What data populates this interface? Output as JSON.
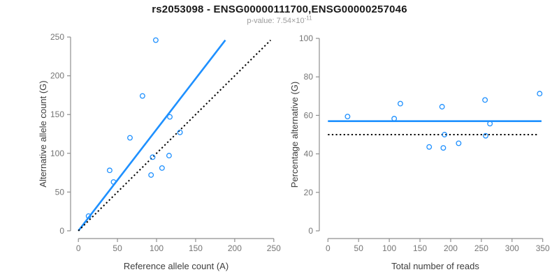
{
  "header": {
    "title": "rs2053098 - ENSG00000111700,ENSG00000257046",
    "pvalue_prefix": "p-value: 7.54×10",
    "pvalue_exponent": "-11"
  },
  "colors": {
    "accent_blue": "#1E90FF",
    "dotted_black": "#000000",
    "axis_line_gray": "#8f8f8f",
    "tick_label_gray": "#757575",
    "axis_title_dark": "#3d3d3d",
    "background": "#ffffff"
  },
  "chart_data": [
    {
      "type": "scatter",
      "panel": "left",
      "xlabel": "Reference allele count (A)",
      "ylabel": "Alternative allele count (G)",
      "xlim": [
        0,
        250
      ],
      "ylim": [
        0,
        250
      ],
      "xticks": [
        0,
        50,
        100,
        150,
        200,
        250
      ],
      "yticks": [
        0,
        50,
        100,
        150,
        200,
        250
      ],
      "grid": false,
      "legend": null,
      "points": [
        [
          13,
          19
        ],
        [
          40,
          78
        ],
        [
          45,
          63
        ],
        [
          66,
          120
        ],
        [
          82,
          174
        ],
        [
          93,
          72
        ],
        [
          95,
          95
        ],
        [
          99,
          246
        ],
        [
          107,
          81
        ],
        [
          116,
          97
        ],
        [
          117,
          147
        ],
        [
          130,
          127
        ]
      ],
      "lines": [
        {
          "name": "fit-line",
          "style": "solid",
          "color": "#1E90FF",
          "from": [
            0,
            0
          ],
          "to": [
            188,
            246
          ]
        },
        {
          "name": "identity-line",
          "style": "dotted",
          "color": "#000000",
          "from": [
            0,
            0
          ],
          "to": [
            246,
            246
          ]
        }
      ]
    },
    {
      "type": "scatter",
      "panel": "right",
      "xlabel": "Total number of reads",
      "ylabel": "Percentage alternative (G)",
      "xlim": [
        0,
        350
      ],
      "ylim": [
        0,
        100
      ],
      "xticks": [
        0,
        50,
        100,
        150,
        200,
        250,
        300,
        350
      ],
      "yticks": [
        0,
        20,
        40,
        60,
        80,
        100
      ],
      "grid": false,
      "legend": null,
      "points": [
        [
          32,
          59.4
        ],
        [
          108,
          58.3
        ],
        [
          118,
          66.1
        ],
        [
          165,
          43.6
        ],
        [
          186,
          64.5
        ],
        [
          188,
          43.1
        ],
        [
          190,
          50.0
        ],
        [
          213,
          45.5
        ],
        [
          256,
          68.0
        ],
        [
          257,
          49.4
        ],
        [
          264,
          55.7
        ],
        [
          345,
          71.3
        ]
      ],
      "lines": [
        {
          "name": "mean-line",
          "style": "solid",
          "color": "#1E90FF",
          "from": [
            0,
            57
          ],
          "to": [
            348,
            57
          ]
        },
        {
          "name": "null-line",
          "style": "dotted",
          "color": "#000000",
          "from": [
            0,
            50
          ],
          "to": [
            342,
            50
          ]
        }
      ]
    }
  ]
}
